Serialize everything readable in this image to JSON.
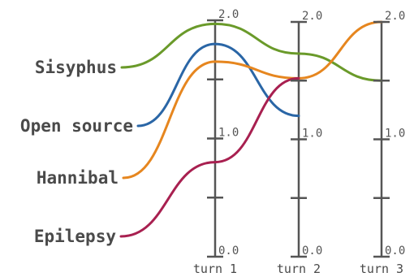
{
  "chart_data": {
    "type": "line",
    "title": "",
    "xlabel": "",
    "ylabel": "",
    "ylim": [
      0,
      2
    ],
    "grid": false,
    "categories": [
      "turn 1",
      "turn 2",
      "turn 3"
    ],
    "tick_labels": [
      "0.0",
      "1.0",
      "2.0"
    ],
    "tick_values": [
      0,
      0.5,
      1,
      1.5,
      2
    ],
    "series": [
      {
        "name": "Sisyphus",
        "color": "#6a9a2a",
        "values": [
          1.97,
          1.73,
          1.5
        ]
      },
      {
        "name": "Open source",
        "color": "#2a66a6",
        "values": [
          1.8,
          1.2,
          null
        ]
      },
      {
        "name": "Hannibal",
        "color": "#e6861f",
        "values": [
          1.65,
          1.52,
          2.0
        ]
      },
      {
        "name": "Epilepsy",
        "color": "#a82050",
        "values": [
          0.8,
          1.52,
          null
        ]
      }
    ]
  }
}
